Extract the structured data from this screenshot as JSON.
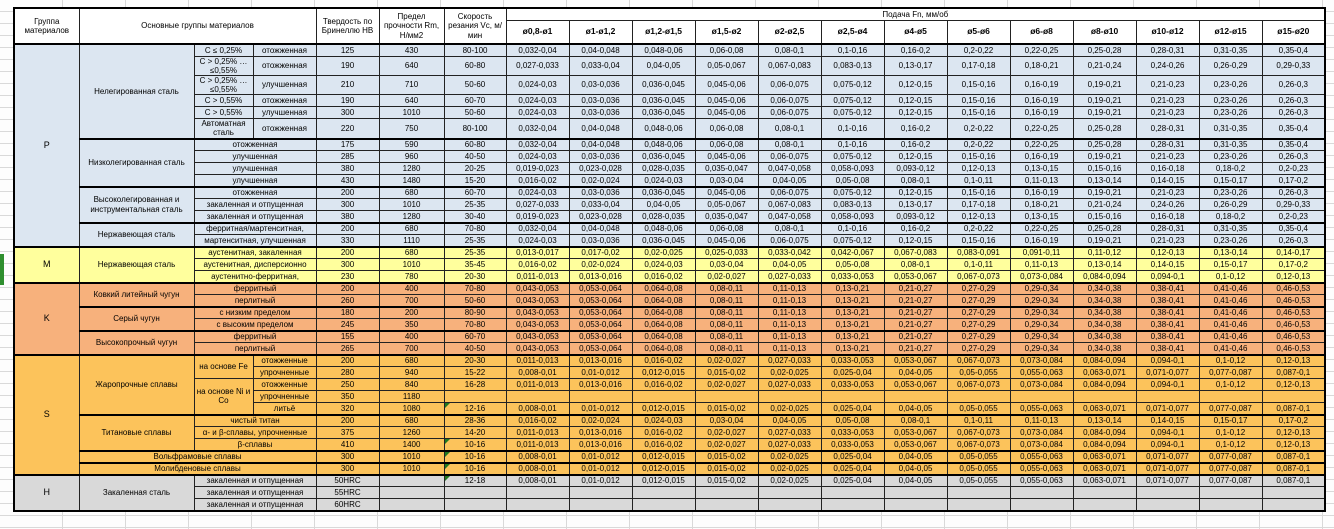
{
  "colors": {
    "group_p": "#dce6f1",
    "group_m": "#ffff9d",
    "group_k": "#f7b17c",
    "group_s": "#fcc35b",
    "group_h": "#d9d9d9",
    "error_marker_green": "#217821"
  },
  "table": {
    "header": {
      "group": "Группа материалов",
      "main": "Основные группы материалов",
      "hb": "Твердость по Бринеллю HB",
      "rm": "Предел прочности Rm, Н/мм2",
      "vc": "Скорость резания Vc, м/мин",
      "feed": "Подача Fn, мм/об",
      "feed_cols": [
        "ø0,8-ø1",
        "ø1-ø1,2",
        "ø1,2-ø1,5",
        "ø1,5-ø2",
        "ø2-ø2,5",
        "ø2,5-ø4",
        "ø4-ø5",
        "ø5-ø6",
        "ø6-ø8",
        "ø8-ø10",
        "ø10-ø12",
        "ø12-ø15",
        "ø15-ø20"
      ]
    },
    "feed_patterns": {
      "A": [
        "0,032-0,04",
        "0,04-0,048",
        "0,048-0,06",
        "0,06-0,08",
        "0,08-0,1",
        "0,1-0,16",
        "0,16-0,2",
        "0,2-0,22",
        "0,22-0,25",
        "0,25-0,28",
        "0,28-0,31",
        "0,31-0,35",
        "0,35-0,4"
      ],
      "B": [
        "0,027-0,033",
        "0,033-0,04",
        "0,04-0,05",
        "0,05-0,067",
        "0,067-0,083",
        "0,083-0,13",
        "0,13-0,17",
        "0,17-0,18",
        "0,18-0,21",
        "0,21-0,24",
        "0,24-0,26",
        "0,26-0,29",
        "0,29-0,33"
      ],
      "C": [
        "0,024-0,03",
        "0,03-0,036",
        "0,036-0,045",
        "0,045-0,06",
        "0,06-0,075",
        "0,075-0,12",
        "0,12-0,15",
        "0,15-0,16",
        "0,16-0,19",
        "0,19-0,21",
        "0,21-0,23",
        "0,23-0,26",
        "0,26-0,3"
      ],
      "D": [
        "0,019-0,023",
        "0,023-0,028",
        "0,028-0,035",
        "0,035-0,047",
        "0,047-0,058",
        "0,058-0,093",
        "0,093-0,12",
        "0,12-0,13",
        "0,13-0,15",
        "0,15-0,16",
        "0,16-0,18",
        "0,18-0,2",
        "0,2-0,23"
      ],
      "E": [
        "0,016-0,02",
        "0,02-0,024",
        "0,024-0,03",
        "0,03-0,04",
        "0,04-0,05",
        "0,05-0,08",
        "0,08-0,1",
        "0,1-0,11",
        "0,11-0,13",
        "0,13-0,14",
        "0,14-0,15",
        "0,15-0,17",
        "0,17-0,2"
      ],
      "F": [
        "0,013-0,017",
        "0,017-0,02",
        "0,02-0,025",
        "0,025-0,033",
        "0,033-0,042",
        "0,042-0,067",
        "0,067-0,083",
        "0,083-0,091",
        "0,091-0,11",
        "0,11-0,12",
        "0,12-0,13",
        "0,13-0,14",
        "0,14-0,17"
      ],
      "G": [
        "0,011-0,013",
        "0,013-0,016",
        "0,016-0,02",
        "0,02-0,027",
        "0,027-0,033",
        "0,033-0,053",
        "0,053-0,067",
        "0,067-0,073",
        "0,073-0,084",
        "0,084-0,094",
        "0,094-0,1",
        "0,1-0,12",
        "0,12-0,13"
      ],
      "H": [
        "0,043-0,053",
        "0,053-0,064",
        "0,064-0,08",
        "0,08-0,11",
        "0,11-0,13",
        "0,13-0,21",
        "0,21-0,27",
        "0,27-0,29",
        "0,29-0,34",
        "0,34-0,38",
        "0,38-0,41",
        "0,41-0,46",
        "0,46-0,53"
      ],
      "I": [
        "0,008-0,01",
        "0,01-0,012",
        "0,012-0,015",
        "0,015-0,02",
        "0,02-0,025",
        "0,025-0,04",
        "0,04-0,05",
        "0,05-0,055",
        "0,055-0,063",
        "0,063-0,071",
        "0,071-0,077",
        "0,077-0,087",
        "0,087-0,1"
      ]
    },
    "rows": [
      {
        "g": "P",
        "grs": 15,
        "cls": "p",
        "top": true,
        "mat": [
          {
            "t": "Нелегированная сталь",
            "rs": 6
          },
          {
            "t": "C ≤ 0,25%"
          },
          {
            "t": "отожженная"
          }
        ],
        "hb": "125",
        "rm": "430",
        "vc": "80-100",
        "feed": "A"
      },
      {
        "cls": "p",
        "tall": true,
        "mat": [
          {
            "t": "C > 0,25% … ≤0,55%"
          },
          {
            "t": "отожженная"
          }
        ],
        "hb": "190",
        "rm": "640",
        "vc": "60-80",
        "feed": "B"
      },
      {
        "cls": "p",
        "tall": true,
        "mat": [
          {
            "t": "C > 0,25% … ≤0,55%"
          },
          {
            "t": "улучшенная"
          }
        ],
        "hb": "210",
        "rm": "710",
        "vc": "50-60",
        "feed": "C"
      },
      {
        "cls": "p",
        "mat": [
          {
            "t": "C > 0,55%"
          },
          {
            "t": "отожженная"
          }
        ],
        "hb": "190",
        "rm": "640",
        "vc": "60-70",
        "feed": "C"
      },
      {
        "cls": "p",
        "mat": [
          {
            "t": "C > 0,55%"
          },
          {
            "t": "улучшенная"
          }
        ],
        "hb": "300",
        "rm": "1010",
        "vc": "50-60",
        "feed": "C"
      },
      {
        "cls": "p",
        "tall": true,
        "mat": [
          {
            "t": "Автоматная сталь"
          },
          {
            "t": "отожженная"
          }
        ],
        "hb": "220",
        "rm": "750",
        "vc": "80-100",
        "feed": "A"
      },
      {
        "cls": "p",
        "top": true,
        "mat": [
          {
            "t": "Низколегированная сталь",
            "rs": 4
          },
          {
            "t": "отожженная",
            "cs": 2
          }
        ],
        "hb": "175",
        "rm": "590",
        "vc": "60-80",
        "feed": "A"
      },
      {
        "cls": "p",
        "mat": [
          {
            "t": "улучшенная",
            "cs": 2
          }
        ],
        "hb": "285",
        "rm": "960",
        "vc": "40-50",
        "feed": "C"
      },
      {
        "cls": "p",
        "mat": [
          {
            "t": "улучшенная",
            "cs": 2
          }
        ],
        "hb": "380",
        "rm": "1280",
        "vc": "20-25",
        "feed": "D"
      },
      {
        "cls": "p",
        "mat": [
          {
            "t": "улучшенная",
            "cs": 2
          }
        ],
        "hb": "430",
        "rm": "1480",
        "vc": "15-20",
        "feed": "E"
      },
      {
        "cls": "p",
        "top": true,
        "mat": [
          {
            "t": "Высоколегированная и инструментальная сталь",
            "rs": 3
          },
          {
            "t": "отожженная",
            "cs": 2
          }
        ],
        "hb": "200",
        "rm": "680",
        "vc": "60-70",
        "feed": "C"
      },
      {
        "cls": "p",
        "mat": [
          {
            "t": "закаленная и отпущенная",
            "cs": 2
          }
        ],
        "hb": "300",
        "rm": "1010",
        "vc": "25-35",
        "feed": "B"
      },
      {
        "cls": "p",
        "mat": [
          {
            "t": "закаленная и отпущенная",
            "cs": 2
          }
        ],
        "hb": "380",
        "rm": "1280",
        "vc": "30-40",
        "feed": "D"
      },
      {
        "cls": "p",
        "top": true,
        "mat": [
          {
            "t": "Нержавеющая сталь",
            "rs": 2
          },
          {
            "t": "ферритная/мартенситная,",
            "cs": 2
          }
        ],
        "hb": "200",
        "rm": "680",
        "vc": "70-80",
        "feed": "A"
      },
      {
        "cls": "p",
        "mat": [
          {
            "t": "мартенситная, улучшенная",
            "cs": 2
          }
        ],
        "hb": "330",
        "rm": "1110",
        "vc": "25-35",
        "feed": "C"
      },
      {
        "g": "M",
        "grs": 3,
        "cls": "m",
        "top": true,
        "mat": [
          {
            "t": "Нержавеющая сталь",
            "rs": 3
          },
          {
            "t": "аустенитная, закаленная",
            "cs": 2
          }
        ],
        "hb": "200",
        "rm": "680",
        "vc": "25-35",
        "feed": "F"
      },
      {
        "cls": "m",
        "mat": [
          {
            "t": "аустенитная, дисперсионно",
            "cs": 2
          }
        ],
        "hb": "300",
        "rm": "1010",
        "vc": "35-45",
        "feed": "E"
      },
      {
        "cls": "m",
        "mat": [
          {
            "t": "аустенитно-ферритная,",
            "cs": 2
          }
        ],
        "hb": "230",
        "rm": "780",
        "vc": "20-30",
        "feed": "G"
      },
      {
        "g": "K",
        "grs": 6,
        "cls": "k",
        "top": true,
        "mat": [
          {
            "t": "Ковкий литейный чугун",
            "rs": 2
          },
          {
            "t": "ферритный",
            "cs": 2
          }
        ],
        "hb": "200",
        "rm": "400",
        "vc": "70-80",
        "feed": "H"
      },
      {
        "cls": "k",
        "mat": [
          {
            "t": "перлитный",
            "cs": 2
          }
        ],
        "hb": "260",
        "rm": "700",
        "vc": "50-60",
        "feed": "H"
      },
      {
        "cls": "k",
        "top": true,
        "mat": [
          {
            "t": "Серый чугун",
            "rs": 2
          },
          {
            "t": "с низким пределом",
            "cs": 2
          }
        ],
        "hb": "180",
        "rm": "200",
        "vc": "80-90",
        "feed": "H"
      },
      {
        "cls": "k",
        "mat": [
          {
            "t": "с высоким пределом",
            "cs": 2
          }
        ],
        "hb": "245",
        "rm": "350",
        "vc": "70-80",
        "feed": "H"
      },
      {
        "cls": "k",
        "top": true,
        "mat": [
          {
            "t": "Высокопрочный чугун",
            "rs": 2
          },
          {
            "t": "ферритный",
            "cs": 2
          }
        ],
        "hb": "155",
        "rm": "400",
        "vc": "60-70",
        "feed": "H"
      },
      {
        "cls": "k",
        "mat": [
          {
            "t": "перлитный",
            "cs": 2
          }
        ],
        "hb": "265",
        "rm": "700",
        "vc": "40-50",
        "feed": "H"
      },
      {
        "g": "S",
        "grs": 10,
        "cls": "s",
        "top": true,
        "mat": [
          {
            "t": "Жаропрочные сплавы",
            "rs": 5
          },
          {
            "t": "на основе Fe",
            "rs": 2
          },
          {
            "t": "отожженные"
          }
        ],
        "hb": "200",
        "rm": "680",
        "vc": "20-30",
        "feed": "G"
      },
      {
        "cls": "s",
        "mat": [
          {
            "t": "упрочненные"
          }
        ],
        "hb": "280",
        "rm": "940",
        "vc": "15-22",
        "feed": "I"
      },
      {
        "cls": "s",
        "mat": [
          {
            "t": "на основе Ni и Co",
            "rs": 3
          },
          {
            "t": "отожженные"
          }
        ],
        "hb": "250",
        "rm": "840",
        "vc": "16-28",
        "feed": "G"
      },
      {
        "cls": "s",
        "mat": [
          {
            "t": "упрочненные"
          }
        ],
        "hb": "350",
        "rm": "1180",
        "vc": "",
        "feed": "empty"
      },
      {
        "cls": "s",
        "mat": [
          {
            "t": "литьё"
          }
        ],
        "hb": "320",
        "rm": "1080",
        "vc": "12-16",
        "note": true,
        "feed": "I"
      },
      {
        "cls": "s",
        "top": true,
        "mat": [
          {
            "t": "Титановые сплавы",
            "rs": 3
          },
          {
            "t": "чистый титан",
            "cs": 2
          }
        ],
        "hb": "200",
        "rm": "680",
        "vc": "28-36",
        "feed": "E"
      },
      {
        "cls": "s",
        "mat": [
          {
            "t": "α- и β-сплавы, упрочненные",
            "cs": 2
          }
        ],
        "hb": "375",
        "rm": "1260",
        "vc": "14-20",
        "feed": "G"
      },
      {
        "cls": "s",
        "mat": [
          {
            "t": "β-сплавы",
            "cs": 2
          }
        ],
        "hb": "410",
        "rm": "1400",
        "vc": "10-16",
        "note": true,
        "feed": "G"
      },
      {
        "cls": "s",
        "top": true,
        "mat": [
          {
            "t": "Вольфрамовые сплавы",
            "cs": 3
          }
        ],
        "hb": "300",
        "rm": "1010",
        "vc": "10-16",
        "note": true,
        "feed": "I"
      },
      {
        "cls": "s",
        "top": true,
        "mat": [
          {
            "t": "Молибденовые сплавы",
            "cs": 3
          }
        ],
        "hb": "300",
        "rm": "1010",
        "vc": "10-16",
        "note": true,
        "feed": "I"
      },
      {
        "g": "H",
        "grs": 3,
        "cls": "h",
        "top": true,
        "mat": [
          {
            "t": "Закаленная сталь",
            "rs": 3
          },
          {
            "t": "закаленная и отпущенная",
            "cs": 2
          }
        ],
        "hb": "50HRC",
        "rm": "",
        "vc": "12-18",
        "note": true,
        "feed": "I"
      },
      {
        "cls": "h",
        "mat": [
          {
            "t": "закаленная и отпущенная",
            "cs": 2
          }
        ],
        "hb": "55HRC",
        "rm": "",
        "vc": "",
        "feed": "empty"
      },
      {
        "cls": "h",
        "mat": [
          {
            "t": "закаленная и отпущенная",
            "cs": 2
          }
        ],
        "hb": "60HRC",
        "rm": "",
        "vc": "",
        "feed": "empty"
      }
    ]
  }
}
